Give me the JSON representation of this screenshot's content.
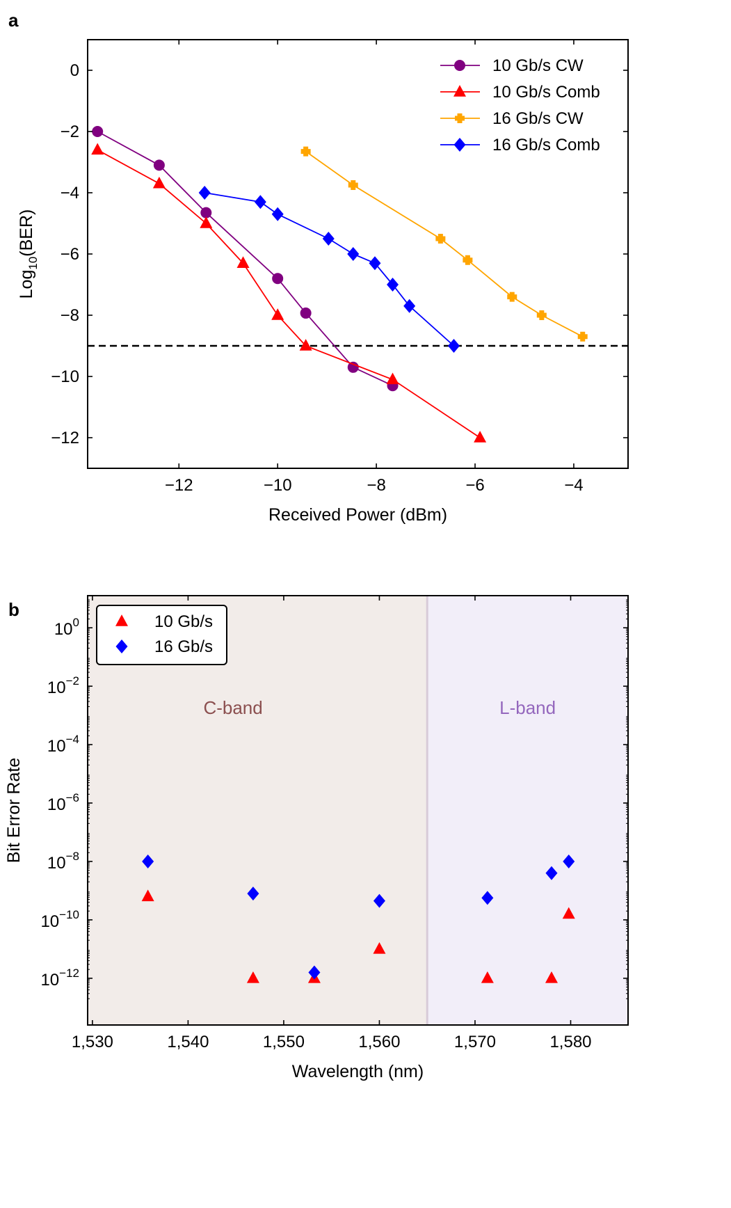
{
  "panels": {
    "a": {
      "label": "a"
    },
    "b": {
      "label": "b"
    }
  },
  "chart_data": [
    {
      "type": "line",
      "panel": "a",
      "xlabel": "Received Power (dBm)",
      "ylabel_main": "Log",
      "ylabel_sub": "10",
      "ylabel_tail": "(BER)",
      "xlim": [
        -13.85,
        -2.9
      ],
      "ylim": [
        -13,
        1
      ],
      "xticks": [
        -12,
        -10,
        -8,
        -6,
        -4
      ],
      "xtick_labels": [
        "−12",
        "−10",
        "−8",
        "−6",
        "−4"
      ],
      "yticks": [
        0,
        -2,
        -4,
        -6,
        -8,
        -10,
        -12
      ],
      "ytick_labels": [
        "0",
        "−2",
        "−4",
        "−6",
        "−8",
        "−10",
        "−12"
      ],
      "threshold_line": {
        "y": -9,
        "style": "dashed",
        "color": "#000000"
      },
      "legend_position": "top-right",
      "series": [
        {
          "name": "10 Gb/s CW",
          "color": "#800080",
          "marker": "circle",
          "x": [
            -13.65,
            -12.4,
            -11.45,
            -10,
            -9.43,
            -8.47,
            -7.67
          ],
          "y": [
            -2.0,
            -3.1,
            -4.65,
            -6.8,
            -7.93,
            -9.7,
            -10.3
          ]
        },
        {
          "name": "10 Gb/s Comb",
          "color": "#ff0000",
          "marker": "triangle",
          "x": [
            -13.65,
            -12.4,
            -11.45,
            -10.7,
            -10,
            -9.43,
            -7.67,
            -5.9
          ],
          "y": [
            -2.6,
            -3.7,
            -5.0,
            -6.3,
            -8.0,
            -9.0,
            -10.1,
            -12.0
          ]
        },
        {
          "name": "16 Gb/s CW",
          "color": "#ffa500",
          "marker": "plus",
          "x": [
            -9.43,
            -8.47,
            -6.7,
            -6.15,
            -5.25,
            -4.65,
            -3.82
          ],
          "y": [
            -2.65,
            -3.75,
            -5.5,
            -6.2,
            -7.4,
            -8.0,
            -8.7
          ]
        },
        {
          "name": "16 Gb/s Comb",
          "color": "#0000ff",
          "marker": "diamond",
          "x": [
            -11.48,
            -10.35,
            -10.0,
            -8.97,
            -8.47,
            -8.03,
            -7.67,
            -7.33,
            -6.43
          ],
          "y": [
            -4.0,
            -4.3,
            -4.7,
            -5.5,
            -6.0,
            -6.3,
            -7.0,
            -7.7,
            -9.0
          ]
        }
      ]
    },
    {
      "type": "scatter",
      "panel": "b",
      "xlabel": "Wavelength (nm)",
      "ylabel": "Bit Error Rate",
      "yscale": "log",
      "xlim": [
        1529.5,
        1586
      ],
      "ylim_log10": [
        -13.6,
        1.1
      ],
      "xticks": [
        1530,
        1540,
        1550,
        1560,
        1570,
        1580
      ],
      "xtick_labels": [
        "1,530",
        "1,540",
        "1,550",
        "1,560",
        "1,570",
        "1,580"
      ],
      "yticks_log10": [
        0,
        -2,
        -4,
        -6,
        -8,
        -10,
        -12
      ],
      "ytick_mantissa": "10",
      "ytick_exponents": [
        "0",
        "−2",
        "−4",
        "−6",
        "−8",
        "−10",
        "−12"
      ],
      "regions": [
        {
          "label": "C-band",
          "from": 1529.5,
          "to": 1565,
          "color": "#f2ece9",
          "text_color": "#8b4f4f"
        },
        {
          "label": "L-band",
          "from": 1565,
          "to": 1586,
          "color": "#f2eef9",
          "text_color": "#9467bd"
        }
      ],
      "legend_position": "top-left",
      "series": [
        {
          "name": "10 Gb/s",
          "color": "#ff0000",
          "marker": "triangle",
          "x": [
            1535.8,
            1546.8,
            1553.2,
            1560,
            1571.3,
            1578,
            1579.8
          ],
          "log10_y": [
            -9.2,
            -12.0,
            -12.0,
            -11.0,
            -12.0,
            -12.0,
            -9.8
          ]
        },
        {
          "name": "16 Gb/s",
          "color": "#0000ff",
          "marker": "diamond",
          "x": [
            1535.8,
            1546.8,
            1553.2,
            1560,
            1571.3,
            1578,
            1579.8
          ],
          "log10_y": [
            -8.0,
            -9.1,
            -11.8,
            -9.35,
            -9.25,
            -8.4,
            -8.0
          ]
        }
      ]
    }
  ]
}
